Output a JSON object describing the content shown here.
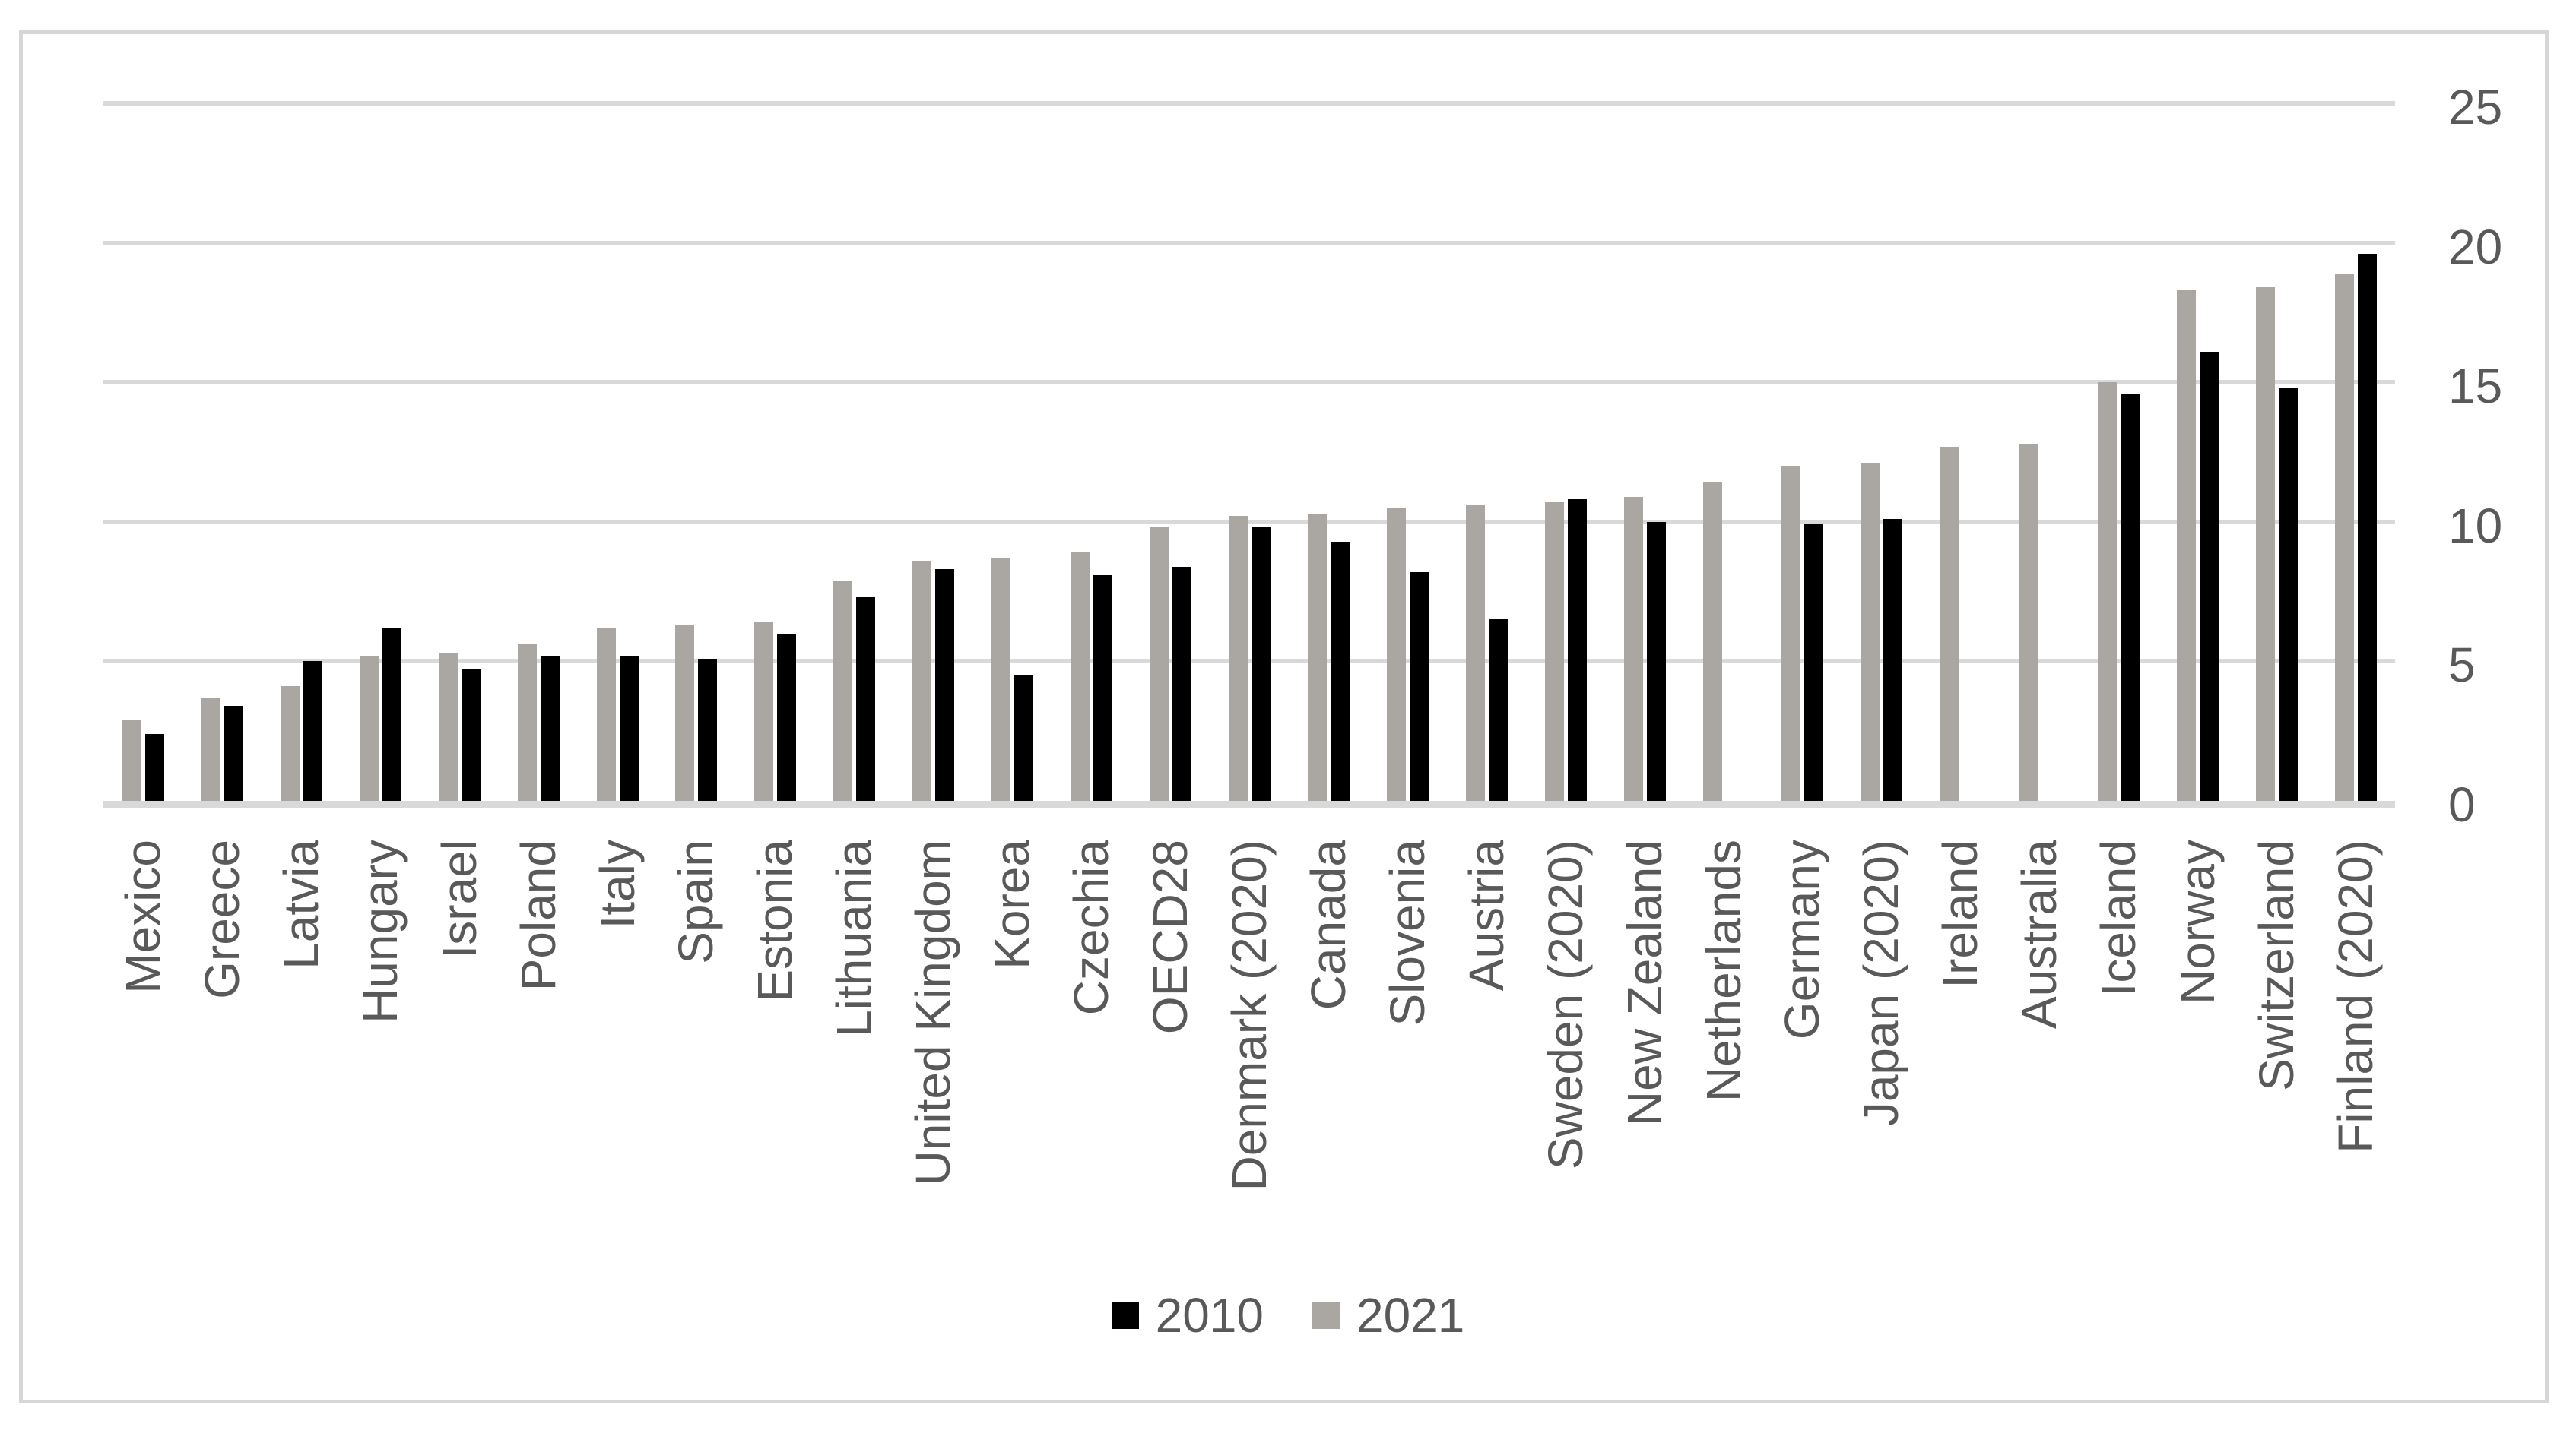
{
  "chart_data": {
    "type": "bar",
    "title": "",
    "categories": [
      "Mexico",
      "Greece",
      "Latvia",
      "Hungary",
      "Israel",
      "Poland",
      "Italy",
      "Spain",
      "Estonia",
      "Lithuania",
      "United Kingdom",
      "Korea",
      "Czechia",
      "OECD28",
      "Denmark (2020)",
      "Canada",
      "Slovenia",
      "Austria",
      "Sweden (2020)",
      "New Zealand",
      "Netherlands",
      "Germany",
      "Japan (2020)",
      "Ireland",
      "Australia",
      "Iceland",
      "Norway",
      "Switzerland",
      "Finland (2020)"
    ],
    "series": [
      {
        "name": "2010",
        "color": "#000000",
        "position_in_group": "right",
        "values": [
          2.4,
          3.4,
          5.0,
          6.2,
          4.7,
          5.2,
          5.2,
          5.1,
          6.0,
          7.3,
          8.3,
          4.5,
          8.1,
          8.4,
          9.8,
          9.3,
          8.2,
          6.5,
          10.8,
          10.0,
          null,
          9.9,
          10.1,
          null,
          null,
          14.6,
          16.1,
          14.8,
          19.6
        ]
      },
      {
        "name": "2021",
        "color": "#aaa7a3",
        "position_in_group": "left",
        "values": [
          2.9,
          3.7,
          4.1,
          5.2,
          5.3,
          5.6,
          6.2,
          6.3,
          6.4,
          7.9,
          8.6,
          8.7,
          8.9,
          9.8,
          10.2,
          10.3,
          10.5,
          10.6,
          10.7,
          10.9,
          11.4,
          12.0,
          12.1,
          12.7,
          12.8,
          15.0,
          18.3,
          18.4,
          18.9
        ]
      }
    ],
    "xlabel": "",
    "ylabel": "",
    "ylim": [
      0,
      25
    ],
    "yticks": [
      0,
      5,
      10,
      15,
      20,
      25
    ],
    "ytick_side": "right",
    "grid": true,
    "legend_position": "bottom",
    "legend": [
      "2010",
      "2021"
    ],
    "colors": {
      "grid": "#d9d9d9",
      "axis": "#d9d9d9",
      "border": "#d6d6d6",
      "text": "#595959",
      "background": "#ffffff"
    }
  }
}
